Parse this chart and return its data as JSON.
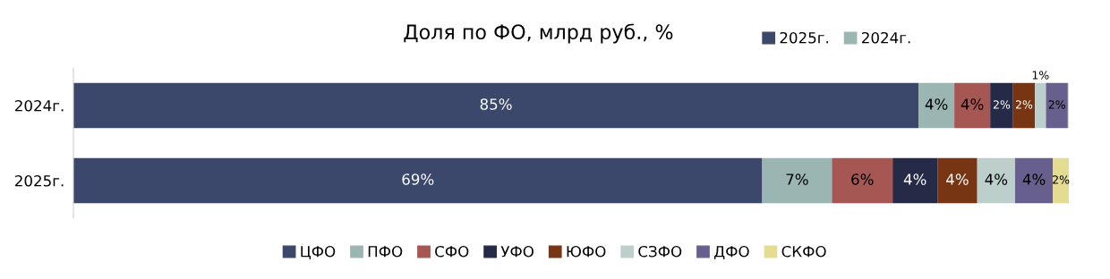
{
  "chart_data": {
    "type": "bar",
    "orientation": "horizontal",
    "stacked": true,
    "title": "Доля по ФО, млрд руб., %",
    "categories": [
      "2024г.",
      "2025г."
    ],
    "series": [
      {
        "name": "ЦФО",
        "color": "#3b476b",
        "values": [
          84.9,
          69.2
        ],
        "value_labels": [
          "85%",
          "69%"
        ]
      },
      {
        "name": "ПФО",
        "color": "#9bb6b2",
        "values": [
          3.6,
          7.0
        ],
        "value_labels": [
          "4%",
          "7%"
        ]
      },
      {
        "name": "СФО",
        "color": "#a65653",
        "values": [
          3.6,
          6.1
        ],
        "value_labels": [
          "4%",
          "6%"
        ]
      },
      {
        "name": "УФО",
        "color": "#252a47",
        "values": [
          2.3,
          4.5
        ],
        "value_labels": [
          "2%",
          "4%"
        ]
      },
      {
        "name": "ЮФО",
        "color": "#773514",
        "values": [
          2.2,
          4.0
        ],
        "value_labels": [
          "2%",
          "4%"
        ]
      },
      {
        "name": "СЗФО",
        "color": "#bccfcb",
        "values": [
          1.1,
          3.8
        ],
        "value_labels": [
          "1%",
          "4%"
        ]
      },
      {
        "name": "ДФО",
        "color": "#67608e",
        "values": [
          2.2,
          3.8
        ],
        "value_labels": [
          "2%",
          "4%"
        ]
      },
      {
        "name": "СКФО",
        "color": "#e3dc91",
        "values": [
          0.2,
          1.6
        ],
        "value_labels": [
          null,
          "2%"
        ]
      }
    ],
    "xlim": [
      0,
      100
    ],
    "tick_labels": "y",
    "grid": false,
    "legend": "bottom",
    "annotations": [
      "2025г.",
      "2024г."
    ]
  }
}
